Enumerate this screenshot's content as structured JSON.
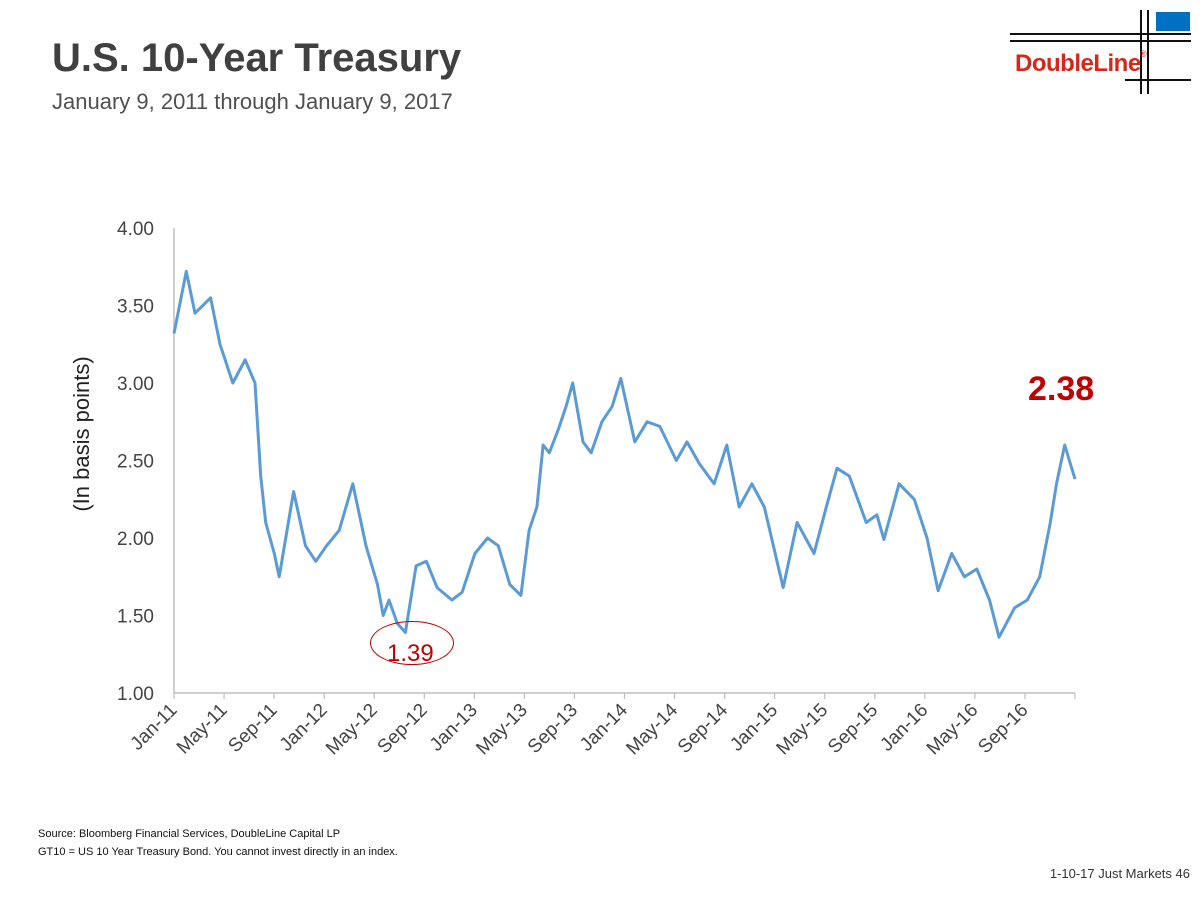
{
  "header": {
    "title": "U.S. 10-Year Treasury",
    "subtitle": "January 9, 2011 through January 9, 2017"
  },
  "logo": {
    "text": "DoubleLine",
    "reg_mark": "®",
    "brand_color": "#d9261c",
    "accent_color": "#0070c0"
  },
  "chart_data": {
    "type": "line",
    "title": "",
    "xlabel": "",
    "ylabel": "(In basis points)",
    "ylim": [
      1.0,
      4.0
    ],
    "yticks": [
      "1.00",
      "1.50",
      "2.00",
      "2.50",
      "3.00",
      "3.50",
      "4.00"
    ],
    "xticks": [
      "Jan-11",
      "May-11",
      "Sep-11",
      "Jan-12",
      "May-12",
      "Sep-12",
      "Jan-13",
      "May-13",
      "Sep-13",
      "Jan-14",
      "May-14",
      "Sep-14",
      "Jan-15",
      "May-15",
      "Sep-15",
      "Jan-16",
      "May-16",
      "Sep-16"
    ],
    "grid": false,
    "line_color": "#5b9bd5",
    "series": [
      {
        "x": [
          "2011-01-09",
          "2011-02-08",
          "2011-03-01",
          "2011-04-08",
          "2011-05-01",
          "2011-06-01",
          "2011-07-01",
          "2011-07-25",
          "2011-08-08",
          "2011-08-20",
          "2011-09-10",
          "2011-09-22",
          "2011-10-27",
          "2011-11-25",
          "2011-12-20",
          "2012-01-15",
          "2012-02-15",
          "2012-03-19",
          "2012-04-20",
          "2012-05-18",
          "2012-06-01",
          "2012-06-15",
          "2012-07-05",
          "2012-07-25",
          "2012-08-20",
          "2012-09-14",
          "2012-10-10",
          "2012-11-15",
          "2012-12-10",
          "2013-01-10",
          "2013-02-10",
          "2013-03-08",
          "2013-04-05",
          "2013-05-02",
          "2013-05-22",
          "2013-06-10",
          "2013-06-25",
          "2013-07-10",
          "2013-08-01",
          "2013-08-20",
          "2013-09-05",
          "2013-09-30",
          "2013-10-20",
          "2013-11-15",
          "2013-12-10",
          "2013-12-31",
          "2014-02-03",
          "2014-03-05",
          "2014-04-05",
          "2014-05-15",
          "2014-06-10",
          "2014-07-10",
          "2014-08-15",
          "2014-09-15",
          "2014-10-15",
          "2014-11-15",
          "2014-12-15",
          "2015-01-30",
          "2015-03-05",
          "2015-04-15",
          "2015-05-15",
          "2015-06-10",
          "2015-07-10",
          "2015-08-20",
          "2015-09-15",
          "2015-10-02",
          "2015-11-08",
          "2015-12-15",
          "2016-01-15",
          "2016-02-11",
          "2016-03-15",
          "2016-04-15",
          "2016-05-15",
          "2016-06-15",
          "2016-07-08",
          "2016-08-15",
          "2016-09-15",
          "2016-10-15",
          "2016-11-10",
          "2016-11-25",
          "2016-12-15",
          "2017-01-09"
        ],
        "y": [
          3.32,
          3.72,
          3.45,
          3.55,
          3.25,
          3.0,
          3.15,
          3.0,
          2.4,
          2.1,
          1.9,
          1.75,
          2.3,
          1.95,
          1.85,
          1.95,
          2.05,
          2.35,
          1.95,
          1.7,
          1.5,
          1.6,
          1.45,
          1.39,
          1.82,
          1.85,
          1.68,
          1.6,
          1.65,
          1.9,
          2.0,
          1.95,
          1.7,
          1.63,
          2.05,
          2.2,
          2.6,
          2.55,
          2.7,
          2.85,
          3.0,
          2.62,
          2.55,
          2.75,
          2.85,
          3.03,
          2.62,
          2.75,
          2.72,
          2.5,
          2.62,
          2.48,
          2.35,
          2.6,
          2.2,
          2.35,
          2.2,
          1.68,
          2.1,
          1.9,
          2.2,
          2.45,
          2.4,
          2.1,
          2.15,
          1.99,
          2.35,
          2.25,
          2.0,
          1.66,
          1.9,
          1.75,
          1.8,
          1.6,
          1.36,
          1.55,
          1.6,
          1.75,
          2.1,
          2.35,
          2.6,
          2.38
        ]
      }
    ],
    "annotations": [
      {
        "label": "2.38",
        "color": "#c00000",
        "kind": "last-value"
      },
      {
        "label": "1.39",
        "color": "#c00000",
        "kind": "circled-low"
      }
    ]
  },
  "footnotes": {
    "source": "Source: Bloomberg Financial Services, DoubleLine Capital LP",
    "note": "GT10 = US 10 Year Treasury Bond. You cannot invest directly in an index."
  },
  "footer": {
    "text": "1-10-17 Just Markets   46"
  }
}
